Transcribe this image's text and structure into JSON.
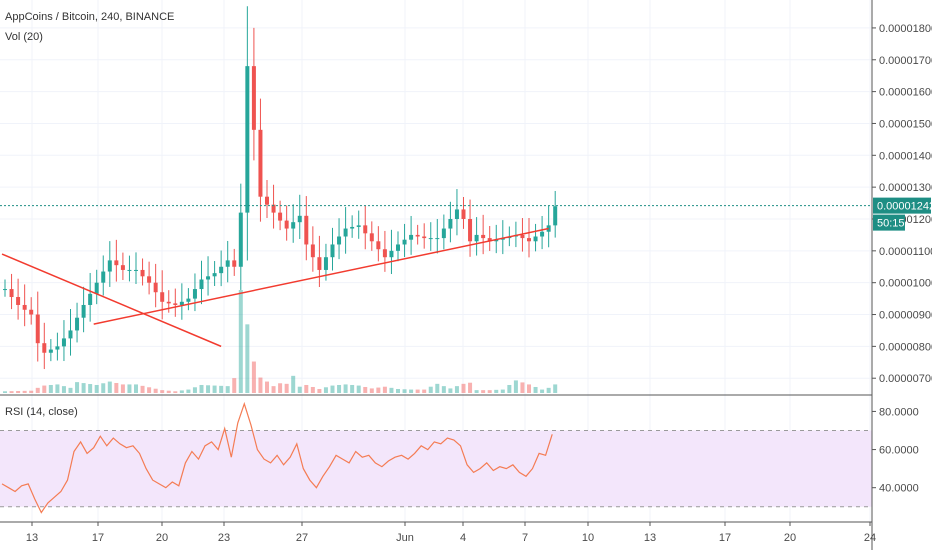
{
  "header": {
    "title": "AppCoins / Bitcoin, 240, BINANCE",
    "volume_label": "Vol (20)",
    "rsi_label": "RSI (14, close)"
  },
  "price_badge": {
    "value": "0.00001242",
    "countdown": "50:15"
  },
  "colors": {
    "up": "#26a69a",
    "down": "#ef5350",
    "trendline": "#f23b2f",
    "rsi_line": "#f47c54",
    "rsi_band": "#f3e6fb",
    "current_price": "#1e8e84"
  },
  "chart_data": [
    {
      "type": "candlestick",
      "title": "AppCoins / Bitcoin, 240, BINANCE",
      "x_tick_labels": [
        "13",
        "17",
        "20",
        "23",
        "27",
        "Jun",
        "4",
        "7",
        "10",
        "13",
        "17",
        "20",
        "24"
      ],
      "y_tick_labels": [
        "0.00001800",
        "0.00001700",
        "0.00001600",
        "0.00001500",
        "0.00001400",
        "0.00001300",
        "0.00001200",
        "0.00001100",
        "0.00001000",
        "0.00000900",
        "0.00000800",
        "0.00000700"
      ],
      "ylim": [
        6.63e-06,
        1.85e-05
      ],
      "current_price": 1.242e-05,
      "price_series": [
        [
          0,
          9.8e-06
        ],
        [
          2,
          9.3e-06
        ],
        [
          4,
          9e-06
        ],
        [
          5,
          8.1e-06
        ],
        [
          6,
          7.8e-06
        ],
        [
          8,
          8e-06
        ],
        [
          10,
          8.5e-06
        ],
        [
          12,
          9.3e-06
        ],
        [
          14,
          1e-05
        ],
        [
          16,
          1.07e-05
        ],
        [
          18,
          1.04e-05
        ],
        [
          20,
          1.04e-05
        ],
        [
          22,
          1e-05
        ],
        [
          24,
          9.4e-06
        ],
        [
          26,
          9.3e-06
        ],
        [
          28,
          9.5e-06
        ],
        [
          30,
          1.01e-05
        ],
        [
          32,
          1.03e-05
        ],
        [
          34,
          1.07e-05
        ],
        [
          35,
          1.05e-05
        ],
        [
          36,
          1.22e-05
        ],
        [
          37,
          1.68e-05
        ],
        [
          38,
          1.48e-05
        ],
        [
          39,
          1.27e-05
        ],
        [
          41,
          1.22e-05
        ],
        [
          43,
          1.17e-05
        ],
        [
          45,
          1.21e-05
        ],
        [
          46,
          1.12e-05
        ],
        [
          48,
          1.04e-05
        ],
        [
          50,
          1.12e-05
        ],
        [
          52,
          1.17e-05
        ],
        [
          54,
          1.18e-05
        ],
        [
          56,
          1.13e-05
        ],
        [
          58,
          1.08e-05
        ],
        [
          60,
          1.12e-05
        ],
        [
          62,
          1.15e-05
        ],
        [
          64,
          1.14e-05
        ],
        [
          66,
          1.14e-05
        ],
        [
          68,
          1.2e-05
        ],
        [
          69,
          1.23e-05
        ],
        [
          70,
          1.2e-05
        ],
        [
          71,
          1.13e-05
        ],
        [
          72,
          1.15e-05
        ],
        [
          74,
          1.13e-05
        ],
        [
          76,
          1.14e-05
        ],
        [
          78,
          1.15e-05
        ],
        [
          80,
          1.13e-05
        ],
        [
          82,
          1.16e-05
        ],
        [
          83,
          1.18e-05
        ],
        [
          84,
          1.24e-05
        ]
      ],
      "trendlines": [
        {
          "from": [
            0,
            1.09e-05
          ],
          "to": [
            33,
            8e-06
          ]
        },
        {
          "from": [
            14,
            8.7e-06
          ],
          "to": [
            83,
            1.17e-05
          ]
        }
      ],
      "volume_series": [
        [
          0,
          0.3
        ],
        [
          4,
          0.4
        ],
        [
          5,
          0.9
        ],
        [
          6,
          1.3
        ],
        [
          8,
          1.5
        ],
        [
          10,
          0.9
        ],
        [
          11,
          1.9
        ],
        [
          14,
          1.4
        ],
        [
          16,
          2.0
        ],
        [
          18,
          1.5
        ],
        [
          20,
          1.5
        ],
        [
          22,
          1.0
        ],
        [
          24,
          0.5
        ],
        [
          26,
          0.3
        ],
        [
          28,
          0.6
        ],
        [
          30,
          1.4
        ],
        [
          32,
          1.3
        ],
        [
          34,
          1.2
        ],
        [
          35,
          2.6
        ],
        [
          36,
          18.0
        ],
        [
          37,
          12.0
        ],
        [
          38,
          5.5
        ],
        [
          39,
          2.7
        ],
        [
          40,
          2.0
        ],
        [
          41,
          1.2
        ],
        [
          42,
          1.7
        ],
        [
          43,
          1.6
        ],
        [
          44,
          3.0
        ],
        [
          45,
          1.1
        ],
        [
          46,
          1.4
        ],
        [
          48,
          0.7
        ],
        [
          50,
          1.3
        ],
        [
          52,
          1.5
        ],
        [
          54,
          1.3
        ],
        [
          56,
          0.8
        ],
        [
          58,
          1.1
        ],
        [
          60,
          0.7
        ],
        [
          62,
          0.6
        ],
        [
          64,
          0.6
        ],
        [
          66,
          1.6
        ],
        [
          68,
          0.8
        ],
        [
          70,
          1.6
        ],
        [
          71,
          1.8
        ],
        [
          72,
          0.5
        ],
        [
          74,
          0.5
        ],
        [
          76,
          0.6
        ],
        [
          78,
          2.2
        ],
        [
          80,
          1.5
        ],
        [
          82,
          0.6
        ],
        [
          83,
          0.9
        ],
        [
          84,
          1.5
        ]
      ]
    },
    {
      "type": "line",
      "title": "RSI (14, close)",
      "y_tick_labels": [
        "80.0000",
        "60.0000",
        "40.0000"
      ],
      "ylim": [
        22,
        86
      ],
      "bands": [
        30,
        70
      ],
      "values": [
        [
          0,
          42
        ],
        [
          1,
          40
        ],
        [
          2,
          38
        ],
        [
          3,
          41
        ],
        [
          4,
          42
        ],
        [
          5,
          34
        ],
        [
          6,
          27
        ],
        [
          7,
          32
        ],
        [
          8,
          35
        ],
        [
          9,
          38
        ],
        [
          10,
          44
        ],
        [
          11,
          59
        ],
        [
          12,
          64
        ],
        [
          13,
          58
        ],
        [
          14,
          61
        ],
        [
          15,
          67
        ],
        [
          16,
          62
        ],
        [
          17,
          66
        ],
        [
          18,
          63
        ],
        [
          19,
          61
        ],
        [
          20,
          62
        ],
        [
          21,
          58
        ],
        [
          22,
          50
        ],
        [
          23,
          44
        ],
        [
          24,
          42
        ],
        [
          25,
          40
        ],
        [
          26,
          43
        ],
        [
          27,
          41
        ],
        [
          28,
          53
        ],
        [
          29,
          59
        ],
        [
          30,
          55
        ],
        [
          31,
          62
        ],
        [
          32,
          64
        ],
        [
          33,
          60
        ],
        [
          34,
          71
        ],
        [
          35,
          56
        ],
        [
          36,
          74
        ],
        [
          37,
          84
        ],
        [
          38,
          73
        ],
        [
          39,
          60
        ],
        [
          40,
          55
        ],
        [
          41,
          53
        ],
        [
          42,
          57
        ],
        [
          43,
          52
        ],
        [
          44,
          56
        ],
        [
          45,
          63
        ],
        [
          46,
          50
        ],
        [
          47,
          44
        ],
        [
          48,
          40
        ],
        [
          49,
          46
        ],
        [
          50,
          51
        ],
        [
          51,
          57
        ],
        [
          52,
          55
        ],
        [
          53,
          53
        ],
        [
          54,
          59
        ],
        [
          55,
          56
        ],
        [
          56,
          57
        ],
        [
          57,
          53
        ],
        [
          58,
          51
        ],
        [
          59,
          54
        ],
        [
          60,
          56
        ],
        [
          61,
          57
        ],
        [
          62,
          55
        ],
        [
          63,
          58
        ],
        [
          64,
          62
        ],
        [
          65,
          60
        ],
        [
          66,
          64
        ],
        [
          67,
          63
        ],
        [
          68,
          66
        ],
        [
          69,
          65
        ],
        [
          70,
          62
        ],
        [
          71,
          52
        ],
        [
          72,
          48
        ],
        [
          73,
          50
        ],
        [
          74,
          53
        ],
        [
          75,
          49
        ],
        [
          76,
          51
        ],
        [
          77,
          50
        ],
        [
          78,
          52
        ],
        [
          79,
          48
        ],
        [
          80,
          46
        ],
        [
          81,
          50
        ],
        [
          82,
          58
        ],
        [
          83,
          57
        ],
        [
          84,
          68
        ]
      ]
    }
  ]
}
